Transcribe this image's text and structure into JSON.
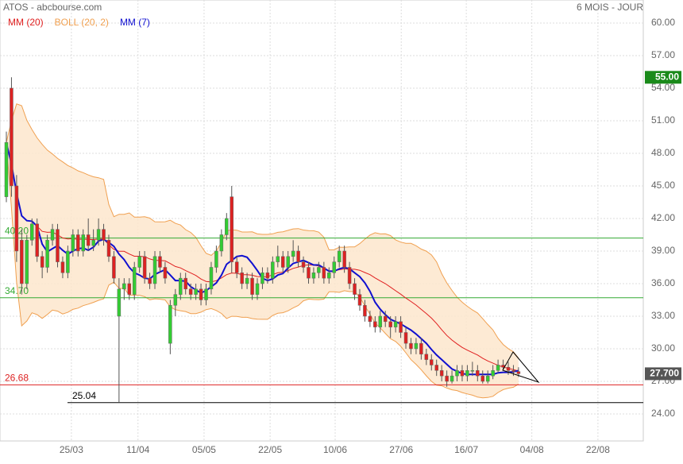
{
  "chart_data": {
    "type": "candlestick",
    "title": "ATOS - abcbourse.com",
    "period_label": "6 MOIS - JOUR",
    "up_color": "#33cc33",
    "down_color": "#dd2222",
    "ohlc": [
      [
        44,
        50,
        43.5,
        49
      ],
      [
        54,
        55,
        44,
        45
      ],
      [
        45,
        46,
        38,
        39
      ],
      [
        40,
        41,
        35,
        36
      ],
      [
        36,
        40.5,
        35.5,
        40
      ],
      [
        40,
        42,
        39.5,
        41.5
      ],
      [
        41.5,
        42,
        38,
        38.5
      ],
      [
        38.5,
        39,
        36.5,
        37.5
      ],
      [
        37.5,
        40.5,
        37,
        40
      ],
      [
        40,
        41.5,
        39.5,
        41
      ],
      [
        41,
        41.5,
        37.5,
        38
      ],
      [
        38,
        38.5,
        36.5,
        37
      ],
      [
        37,
        39.5,
        36.5,
        39
      ],
      [
        39,
        41,
        38.5,
        40.5
      ],
      [
        40.5,
        41,
        38.5,
        39
      ],
      [
        39,
        41,
        38.5,
        40.5
      ],
      [
        40.5,
        42,
        39,
        39.5
      ],
      [
        39.5,
        41,
        39,
        40
      ],
      [
        40,
        42,
        39.5,
        41
      ],
      [
        41,
        41.5,
        39.5,
        40
      ],
      [
        40,
        40.5,
        38,
        38.5
      ],
      [
        38.5,
        39,
        36,
        36.5
      ],
      [
        33,
        36.5,
        25.04,
        35.5
      ],
      [
        35.5,
        36.5,
        34.5,
        36
      ],
      [
        36,
        36.5,
        34.5,
        35
      ],
      [
        35,
        38,
        34.5,
        37.5
      ],
      [
        37.5,
        39,
        37,
        38.5
      ],
      [
        38.5,
        39,
        36,
        36.5
      ],
      [
        36.5,
        37,
        35.5,
        36
      ],
      [
        36,
        39,
        35.5,
        38.5
      ],
      [
        38.5,
        39,
        37,
        37.5
      ],
      [
        37.5,
        38,
        36,
        36.5
      ],
      [
        30.5,
        34.5,
        29.5,
        34
      ],
      [
        34,
        35.5,
        33,
        35
      ],
      [
        35,
        37,
        34.5,
        36.5
      ],
      [
        36.5,
        37,
        35,
        35.5
      ],
      [
        35.5,
        36,
        34.5,
        35
      ],
      [
        35,
        36,
        34.5,
        35.5
      ],
      [
        35.5,
        36,
        34,
        34.5
      ],
      [
        34.5,
        36,
        34,
        35.5
      ],
      [
        35.5,
        38,
        35,
        37.5
      ],
      [
        37.5,
        39.5,
        37,
        39
      ],
      [
        39,
        41,
        38.5,
        40.5
      ],
      [
        40.5,
        42.5,
        40,
        42
      ],
      [
        44,
        45,
        37,
        38
      ],
      [
        38,
        38.5,
        36.5,
        37
      ],
      [
        37,
        37.5,
        35.5,
        36
      ],
      [
        36,
        37,
        35.5,
        36.5
      ],
      [
        36.5,
        37,
        34.5,
        35
      ],
      [
        35,
        36.5,
        34.5,
        36
      ],
      [
        36,
        37.5,
        35.5,
        37
      ],
      [
        37,
        37.5,
        36,
        36.5
      ],
      [
        36.5,
        38.5,
        36,
        38
      ],
      [
        38,
        39.5,
        37.5,
        38.5
      ],
      [
        38.5,
        39,
        37,
        37.5
      ],
      [
        37.5,
        39,
        37,
        38.5
      ],
      [
        38.5,
        40,
        38,
        39
      ],
      [
        39,
        39.5,
        37.5,
        38
      ],
      [
        38,
        38.5,
        37,
        37.5
      ],
      [
        37.5,
        38,
        36,
        36.5
      ],
      [
        36.5,
        37.5,
        36,
        37
      ],
      [
        37,
        38,
        36.5,
        37.5
      ],
      [
        37.5,
        38,
        36,
        36.5
      ],
      [
        36.5,
        37.5,
        36,
        37
      ],
      [
        37,
        38.5,
        36.5,
        38
      ],
      [
        38,
        39.5,
        37.5,
        39
      ],
      [
        39,
        39.5,
        37,
        37.5
      ],
      [
        37.5,
        38,
        35.5,
        36
      ],
      [
        36,
        36.5,
        34.5,
        35
      ],
      [
        35,
        35.5,
        33.5,
        34
      ],
      [
        34,
        34.5,
        32.5,
        33
      ],
      [
        33,
        33.5,
        32,
        32.5
      ],
      [
        32.5,
        33,
        31.5,
        32
      ],
      [
        32,
        33.5,
        31.5,
        33
      ],
      [
        33,
        33.5,
        32,
        32.5
      ],
      [
        32.5,
        33,
        31,
        32
      ],
      [
        32,
        33,
        31.5,
        32.5
      ],
      [
        32.5,
        33,
        31,
        31.5
      ],
      [
        31.5,
        32,
        30,
        30.5
      ],
      [
        30.5,
        31,
        29.5,
        30
      ],
      [
        30,
        31,
        29.5,
        30.5
      ],
      [
        30.5,
        31,
        29,
        29.5
      ],
      [
        29.5,
        30,
        28.5,
        29
      ],
      [
        29,
        29.5,
        28,
        28.5
      ],
      [
        28.5,
        29,
        27.5,
        28
      ],
      [
        28,
        28.5,
        27,
        27.5
      ],
      [
        27.5,
        28,
        26.5,
        27
      ],
      [
        27,
        28,
        26.8,
        27.5
      ],
      [
        27.5,
        28.5,
        27,
        28
      ],
      [
        28,
        28.5,
        27,
        27.5
      ],
      [
        27.5,
        28.5,
        27,
        28
      ],
      [
        28,
        28.8,
        27.5,
        28
      ],
      [
        28,
        28.5,
        27,
        27.5
      ],
      [
        27.5,
        28,
        26.8,
        27
      ],
      [
        27,
        28,
        26.8,
        27.5
      ],
      [
        27.5,
        28.5,
        27.2,
        28
      ],
      [
        28,
        29,
        27.8,
        28.5
      ],
      [
        28.5,
        29,
        28,
        28.3
      ],
      [
        28.3,
        28.8,
        27.6,
        28
      ],
      [
        28,
        28.5,
        27.5,
        27.9
      ],
      [
        27.9,
        28.3,
        27.4,
        27.7
      ]
    ],
    "indicators": [
      {
        "name": "MM (20)",
        "kind": "ma",
        "period": 20,
        "color": "#e02020"
      },
      {
        "name": "BOLL (20, 2)",
        "kind": "boll",
        "period": 20,
        "width": 2,
        "color": "#f0a050"
      },
      {
        "name": "MM (7)",
        "kind": "ma",
        "period": 7,
        "color": "#1010d0"
      }
    ],
    "levels": [
      {
        "value": 40.2,
        "label": "40.20",
        "color": "#33aa33"
      },
      {
        "value": 34.7,
        "label": "34.70",
        "color": "#33aa33"
      },
      {
        "value": 26.68,
        "label": "26.68",
        "color": "#dd2222"
      },
      {
        "value": 25.04,
        "label": "25.04",
        "color": "#000000"
      }
    ],
    "price_tags": [
      {
        "value": 55,
        "label": "55.00",
        "color": "#1a8a1a"
      },
      {
        "value": 27.7,
        "label": "27.700",
        "color": "#555555"
      }
    ],
    "xlim": [
      -1.24,
      124.36
    ],
    "xticks": [
      {
        "value": 12.7,
        "label": "25/03"
      },
      {
        "value": 25.7,
        "label": "11/04"
      },
      {
        "value": 38.6,
        "label": "05/05"
      },
      {
        "value": 51.5,
        "label": "22/05"
      },
      {
        "value": 64.2,
        "label": "10/06"
      },
      {
        "value": 77.1,
        "label": "27/06"
      },
      {
        "value": 89.8,
        "label": "16/07"
      },
      {
        "value": 102.6,
        "label": "04/08"
      },
      {
        "value": 115.5,
        "label": "22/08"
      }
    ],
    "ylim": [
      21.51,
      62.12
    ],
    "yticks": [
      {
        "value": 24,
        "label": "24.00"
      },
      {
        "value": 27,
        "label": "27.00"
      },
      {
        "value": 30,
        "label": "30.00"
      },
      {
        "value": 33,
        "label": "33.00"
      },
      {
        "value": 36,
        "label": "36.00"
      },
      {
        "value": 39,
        "label": "39.00"
      },
      {
        "value": 42,
        "label": "42.00"
      },
      {
        "value": 45,
        "label": "45.00"
      },
      {
        "value": 48,
        "label": "48.00"
      },
      {
        "value": 51,
        "label": "51.00"
      },
      {
        "value": 54,
        "label": "54.00"
      },
      {
        "value": 57,
        "label": "57.00"
      },
      {
        "value": 60,
        "label": "60.00"
      }
    ],
    "grid": true
  }
}
